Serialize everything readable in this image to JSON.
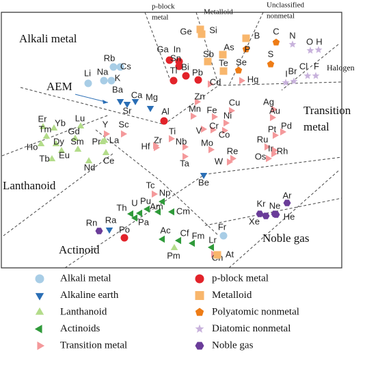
{
  "regions": [
    {
      "lines": [
        "Alkali metal"
      ]
    },
    {
      "lines": [
        "p-block",
        "metal"
      ]
    },
    {
      "lines": [
        "Metalloid"
      ]
    },
    {
      "lines": [
        "Unclassified",
        "nonmetal"
      ]
    },
    {
      "lines": [
        "Halogen"
      ]
    },
    {
      "lines": [
        "AEM"
      ]
    },
    {
      "lines": [
        "Transition",
        "metal"
      ]
    },
    {
      "lines": [
        "Lanthanoid"
      ]
    },
    {
      "lines": [
        "Actinoid"
      ]
    },
    {
      "lines": [
        "Noble gas"
      ]
    }
  ],
  "groups": [
    {
      "name": "Alkali metal",
      "color": "#a8cde6",
      "members": [
        "Rb",
        "Cs",
        "Li",
        "Na",
        "K",
        "Fr"
      ]
    },
    {
      "name": "Alkaline earth",
      "color": "#2a6eb5",
      "members": [
        "Ba",
        "Ca",
        "Mg",
        "Sr",
        "Be",
        "Ra"
      ]
    },
    {
      "name": "Lanthanoid",
      "color": "#b3dc8a",
      "members": [
        "Er",
        "Yb",
        "Lu",
        "Tm",
        "Gd",
        "Dy",
        "Sm",
        "Ho",
        "Eu",
        "Tb",
        "Nd",
        "Pr",
        "La",
        "Ce",
        "Pm"
      ]
    },
    {
      "name": "Actinoids",
      "color": "#2f9a3a",
      "members": [
        "Th",
        "U",
        "Pu",
        "Am",
        "Np",
        "Cm",
        "Pa",
        "Ac",
        "Cf",
        "Fm",
        "Lr"
      ]
    },
    {
      "name": "Transition metal",
      "color": "#f4999b",
      "members": [
        "Zn",
        "Cu",
        "Mn",
        "Fe",
        "Ni",
        "Cr",
        "Co",
        "V",
        "Mo",
        "Re",
        "W",
        "Ti",
        "Zr",
        "Nb",
        "Hf",
        "Ta",
        "Y",
        "Sc",
        "Ag",
        "Au",
        "Pd",
        "Pt",
        "Ru",
        "Ir",
        "Rh",
        "Os",
        "Tc",
        "Cn",
        "Hg",
        "Cd"
      ]
    },
    {
      "name": "p-block metal",
      "color": "#e2232a",
      "members": [
        "Ga",
        "In",
        "Sn",
        "Tl",
        "Bi",
        "Pb",
        "Al",
        "Po"
      ]
    },
    {
      "name": "Metalloid",
      "color": "#f8b66c",
      "members": [
        "Ge",
        "Si",
        "As",
        "Sb",
        "B",
        "Te",
        "At"
      ]
    },
    {
      "name": "Polyatomic nonmetal",
      "color": "#ee7c16",
      "members": [
        "C",
        "P",
        "S",
        "Se"
      ]
    },
    {
      "name": "Diatomic nonmetal",
      "color": "#c8b2dc",
      "members": [
        "N",
        "O",
        "H",
        "Cl",
        "F",
        "Br",
        "I"
      ]
    },
    {
      "name": "Noble gas",
      "color": "#6a3c99",
      "members": [
        "Ar",
        "Kr",
        "Ne",
        "Xe",
        "He",
        "Rn"
      ]
    }
  ]
}
